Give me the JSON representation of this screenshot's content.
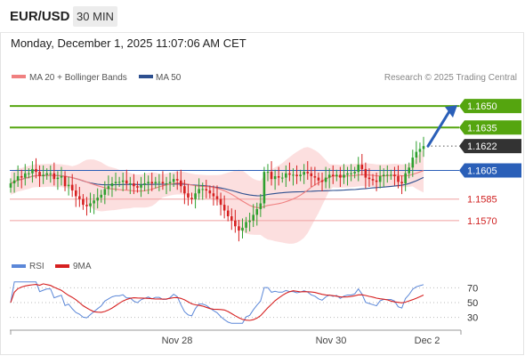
{
  "header": {
    "symbol": "EUR/USD",
    "timeframe": "30 MIN",
    "datetime": "Monday, December 1, 2025 11:07:06 AM CET"
  },
  "legend": {
    "ma20_bb": "MA 20 + Bollinger Bands",
    "ma50": "MA 50",
    "credit": "Research © 2025 Trading Central",
    "rsi": "RSI",
    "ma9": "9MA"
  },
  "colors": {
    "candle_up": "#2ea02e",
    "candle_down": "#d62020",
    "bollinger_fill": "#fbd9d9",
    "ma20": "#f08080",
    "ma50": "#2d4f8f",
    "resistance": "#55a50f",
    "support": "#f0a0a0",
    "pivot": "#2a5fb8",
    "last_price": "#333333",
    "arrow": "#2a5fb8",
    "rsi": "#5b87d8",
    "ma9": "#d62020"
  },
  "chart_data": [
    {
      "type": "candlestick",
      "x_ticks": [
        "Nov 28",
        "Nov 30",
        "Dec 2"
      ],
      "y_range": [
        1.155,
        1.1665
      ],
      "levels": [
        {
          "value": 1.165,
          "label": "1.1650",
          "kind": "resistance"
        },
        {
          "value": 1.1635,
          "label": "1.1635",
          "kind": "resistance"
        },
        {
          "value": 1.1622,
          "label": "1.1622",
          "kind": "last"
        },
        {
          "value": 1.1605,
          "label": "1.1605",
          "kind": "pivot"
        },
        {
          "value": 1.1585,
          "label": "1.1585",
          "kind": "support"
        },
        {
          "value": 1.157,
          "label": "1.1570",
          "kind": "support"
        }
      ],
      "projection": {
        "from": 1.1622,
        "to": 1.165
      },
      "closes": [
        1.1596,
        1.1598,
        1.1601,
        1.16,
        1.1603,
        1.1603,
        1.1606,
        1.1604,
        1.1601,
        1.1602,
        1.1603,
        1.1603,
        1.1599,
        1.16,
        1.1601,
        1.1594,
        1.1595,
        1.1591,
        1.1587,
        1.1585,
        1.1581,
        1.158,
        1.1582,
        1.1584,
        1.1586,
        1.1588,
        1.1592,
        1.1594,
        1.1596,
        1.1597,
        1.1597,
        1.1598,
        1.1596,
        1.1596,
        1.1594,
        1.1593,
        1.1595,
        1.1596,
        1.1597,
        1.1596,
        1.1597,
        1.1597,
        1.1596,
        1.1596,
        1.1597,
        1.1599,
        1.1598,
        1.1594,
        1.1589,
        1.1586,
        1.1585,
        1.1589,
        1.1592,
        1.1592,
        1.1591,
        1.1589,
        1.1587,
        1.1585,
        1.1581,
        1.1577,
        1.1573,
        1.157,
        1.1566,
        1.1563,
        1.1565,
        1.1569,
        1.157,
        1.1574,
        1.1578,
        1.1582,
        1.1604,
        1.1604,
        1.1599,
        1.1601,
        1.16,
        1.16,
        1.1603,
        1.1602,
        1.1602,
        1.1601,
        1.1602,
        1.1604,
        1.1603,
        1.1601,
        1.16,
        1.1598,
        1.1597,
        1.16,
        1.1602,
        1.1601,
        1.1602,
        1.16,
        1.1602,
        1.1603,
        1.1603,
        1.1604,
        1.1609,
        1.1606,
        1.16,
        1.1599,
        1.1598,
        1.1597,
        1.1601,
        1.1602,
        1.1602,
        1.1602,
        1.1601,
        1.1597,
        1.1596,
        1.1603,
        1.1607,
        1.1614,
        1.1618,
        1.162,
        1.1622
      ]
    },
    {
      "type": "line",
      "title": "RSI",
      "y_ticks": [
        30,
        50,
        70
      ],
      "y_range": [
        20,
        80
      ]
    }
  ]
}
